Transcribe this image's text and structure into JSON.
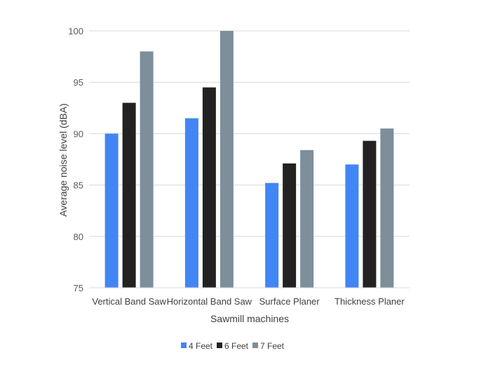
{
  "chart_data": {
    "type": "bar",
    "title": "",
    "xlabel": "Sawmill machines",
    "ylabel": "Average noise level (dBA)",
    "ylim": [
      75,
      100
    ],
    "yticks": [
      75,
      80,
      85,
      90,
      95,
      100
    ],
    "categories": [
      "Vertical Band Saw",
      "Horizontal Band Saw",
      "Surface Planer",
      "Thickness Planer"
    ],
    "series": [
      {
        "name": "4 Feet",
        "color": "#4285f4",
        "values": [
          90.0,
          91.5,
          85.2,
          87.0
        ]
      },
      {
        "name": "6 Feet",
        "color": "#222222",
        "values": [
          93.0,
          94.5,
          87.1,
          89.3
        ]
      },
      {
        "name": "7 Feet",
        "color": "#7c8f9a",
        "values": [
          98.0,
          100.0,
          88.4,
          90.5
        ]
      }
    ],
    "grid": true,
    "legend_position": "bottom-center"
  }
}
